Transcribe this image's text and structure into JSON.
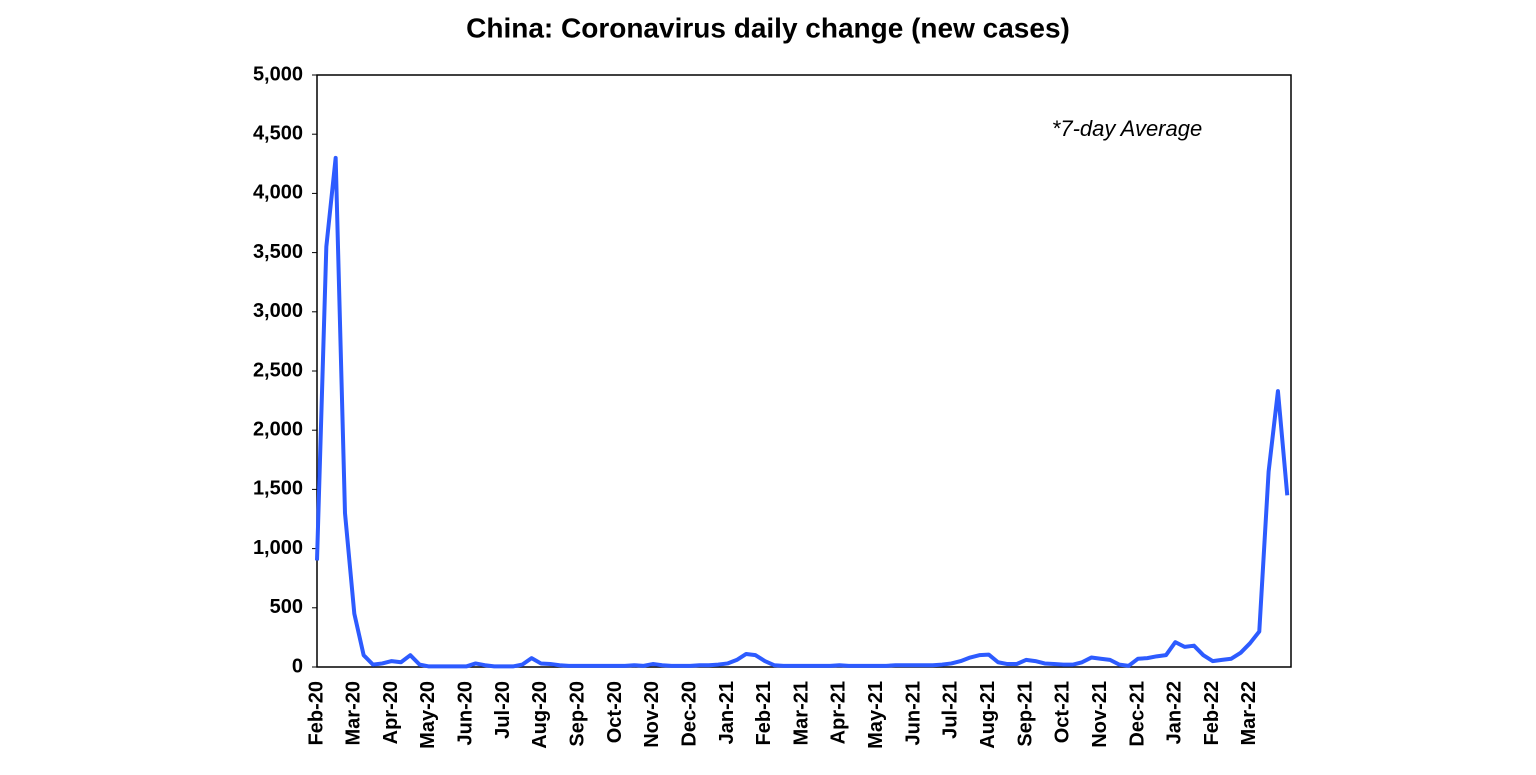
{
  "chart_data": {
    "type": "line",
    "title": "China: Coronavirus daily change (new cases)",
    "annotation": "*7-day Average",
    "categories": [
      "Feb-20",
      null,
      null,
      null,
      "Mar-20",
      null,
      null,
      null,
      "Apr-20",
      null,
      null,
      null,
      "May-20",
      null,
      null,
      null,
      "Jun-20",
      null,
      null,
      null,
      "Jul-20",
      null,
      null,
      null,
      "Aug-20",
      null,
      null,
      null,
      "Sep-20",
      null,
      null,
      null,
      "Oct-20",
      null,
      null,
      null,
      "Nov-20",
      null,
      null,
      null,
      "Dec-20",
      null,
      null,
      null,
      "Jan-21",
      null,
      null,
      null,
      "Feb-21",
      null,
      null,
      null,
      "Mar-21",
      null,
      null,
      null,
      "Apr-21",
      null,
      null,
      null,
      "May-21",
      null,
      null,
      null,
      "Jun-21",
      null,
      null,
      null,
      "Jul-21",
      null,
      null,
      null,
      "Aug-21",
      null,
      null,
      null,
      "Sep-21",
      null,
      null,
      null,
      "Oct-21",
      null,
      null,
      null,
      "Nov-21",
      null,
      null,
      null,
      "Dec-21",
      null,
      null,
      null,
      "Jan-22",
      null,
      null,
      null,
      "Feb-22",
      null,
      null,
      null,
      "Mar-22",
      null,
      null,
      null,
      null
    ],
    "series": [
      {
        "color": "#2d5bff",
        "values": [
          900,
          3550,
          4300,
          1300,
          450,
          100,
          20,
          30,
          50,
          40,
          100,
          20,
          5,
          5,
          5,
          5,
          5,
          30,
          15,
          5,
          5,
          5,
          20,
          75,
          30,
          25,
          15,
          10,
          10,
          10,
          10,
          10,
          10,
          10,
          15,
          10,
          25,
          15,
          10,
          10,
          10,
          15,
          15,
          20,
          30,
          60,
          110,
          100,
          50,
          15,
          10,
          10,
          10,
          10,
          10,
          10,
          15,
          10,
          10,
          10,
          10,
          10,
          15,
          15,
          15,
          15,
          15,
          20,
          30,
          50,
          80,
          100,
          105,
          40,
          25,
          25,
          60,
          50,
          30,
          25,
          20,
          20,
          40,
          80,
          70,
          60,
          20,
          10,
          70,
          75,
          90,
          100,
          210,
          170,
          180,
          100,
          50,
          60,
          70,
          120,
          200,
          300,
          1650,
          2330,
          1450
        ]
      }
    ],
    "ylim": [
      0,
      5000
    ],
    "yticks": [
      0,
      {
        "value": 500,
        "label": "500"
      },
      {
        "value": 1000,
        "label": "1,000"
      },
      {
        "value": 1500,
        "label": "1,500"
      },
      {
        "value": 2000,
        "label": "2,000"
      },
      {
        "value": 2500,
        "label": "2,500"
      },
      {
        "value": 3000,
        "label": "3,000"
      },
      {
        "value": 3500,
        "label": "3,500"
      },
      {
        "value": 4000,
        "label": "4,000"
      },
      {
        "value": 4500,
        "label": "4,500"
      },
      {
        "value": 5000,
        "label": "5,000"
      }
    ],
    "grid": false
  }
}
